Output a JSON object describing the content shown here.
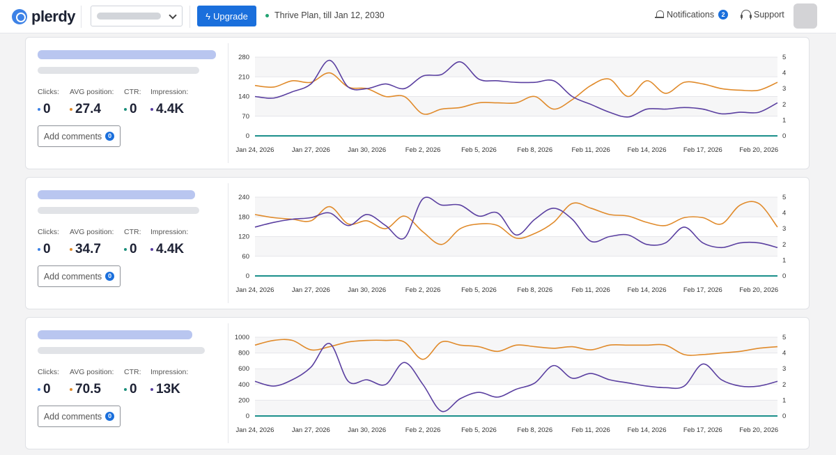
{
  "header": {
    "brand": "plerdy",
    "upgrade_label": "Upgrade",
    "plan_text": "Thrive Plan, till Jan 12, 2030",
    "notifications_label": "Notifications",
    "notifications_count": "2",
    "support_label": "Support"
  },
  "colors": {
    "accent": "#1a6fdc",
    "orange": "#e08a2a",
    "purple": "#5a3fa0",
    "teal": "#1a8f8a"
  },
  "cards": [
    {
      "metrics": [
        {
          "label": "Clicks:",
          "value": "0",
          "color": "#3d82e6"
        },
        {
          "label": "AVG position:",
          "value": "27.4",
          "color": "#e08a2a"
        },
        {
          "label": "CTR:",
          "value": "0",
          "color": "#1a8f7a"
        },
        {
          "label": "Impression:",
          "value": "4.4K",
          "color": "#5a3fa0"
        }
      ],
      "add_comments_label": "Add comments",
      "comments_count": "0",
      "chart": {
        "left_ticks": [
          "280",
          "210",
          "140",
          "70",
          "0"
        ],
        "right_ticks": [
          "5",
          "4",
          "3",
          "2",
          "1",
          "0"
        ],
        "x_labels": [
          "Jan 24, 2026",
          "Jan 27, 2026",
          "Jan 30, 2026",
          "Feb 2, 2026",
          "Feb 5, 2026",
          "Feb 8, 2026",
          "Feb 11, 2026",
          "Feb 14, 2026",
          "Feb 17, 2026",
          "Feb 20, 2026"
        ]
      }
    },
    {
      "metrics": [
        {
          "label": "Clicks:",
          "value": "0",
          "color": "#3d82e6"
        },
        {
          "label": "AVG position:",
          "value": "34.7",
          "color": "#e08a2a"
        },
        {
          "label": "CTR:",
          "value": "0",
          "color": "#1a8f7a"
        },
        {
          "label": "Impression:",
          "value": "4.4K",
          "color": "#5a3fa0"
        }
      ],
      "add_comments_label": "Add comments",
      "comments_count": "0",
      "chart": {
        "left_ticks": [
          "240",
          "180",
          "120",
          "60",
          "0"
        ],
        "right_ticks": [
          "5",
          "4",
          "3",
          "2",
          "1",
          "0"
        ],
        "x_labels": [
          "Jan 24, 2026",
          "Jan 27, 2026",
          "Jan 30, 2026",
          "Feb 2, 2026",
          "Feb 5, 2026",
          "Feb 8, 2026",
          "Feb 11, 2026",
          "Feb 14, 2026",
          "Feb 17, 2026",
          "Feb 20, 2026"
        ]
      }
    },
    {
      "metrics": [
        {
          "label": "Clicks:",
          "value": "0",
          "color": "#3d82e6"
        },
        {
          "label": "AVG position:",
          "value": "70.5",
          "color": "#e08a2a"
        },
        {
          "label": "CTR:",
          "value": "0",
          "color": "#1a8f7a"
        },
        {
          "label": "Impression:",
          "value": "13K",
          "color": "#5a3fa0"
        }
      ],
      "add_comments_label": "Add comments",
      "comments_count": "0",
      "chart": {
        "left_ticks": [
          "1000",
          "800",
          "600",
          "400",
          "200",
          "0"
        ],
        "right_ticks": [
          "5",
          "4",
          "3",
          "2",
          "1",
          "0"
        ],
        "x_labels": [
          "Jan 24, 2026",
          "Jan 27, 2026",
          "Jan 30, 2026",
          "Feb 2, 2026",
          "Feb 5, 2026",
          "Feb 8, 2026",
          "Feb 11, 2026",
          "Feb 14, 2026",
          "Feb 17, 2026",
          "Feb 20, 2026"
        ]
      }
    }
  ],
  "chart_data": [
    {
      "type": "line",
      "ylim": [
        0,
        280
      ],
      "y2lim": [
        0,
        5
      ],
      "x": [
        "Jan 24, 2026",
        "Jan 25, 2026",
        "Jan 26, 2026",
        "Jan 27, 2026",
        "Jan 28, 2026",
        "Jan 29, 2026",
        "Jan 30, 2026",
        "Jan 31, 2026",
        "Feb 1, 2026",
        "Feb 2, 2026",
        "Feb 3, 2026",
        "Feb 4, 2026",
        "Feb 5, 2026",
        "Feb 6, 2026",
        "Feb 7, 2026",
        "Feb 8, 2026",
        "Feb 9, 2026",
        "Feb 10, 2026",
        "Feb 11, 2026",
        "Feb 12, 2026",
        "Feb 13, 2026",
        "Feb 14, 2026",
        "Feb 15, 2026",
        "Feb 16, 2026",
        "Feb 17, 2026",
        "Feb 18, 2026",
        "Feb 19, 2026",
        "Feb 20, 2026",
        "Feb 21, 2026"
      ],
      "series": [
        {
          "axis": "right",
          "color": "#e08a2a",
          "values": [
            3.2,
            3.1,
            3.5,
            3.4,
            4.0,
            3.1,
            3.0,
            2.5,
            2.5,
            1.4,
            1.7,
            1.8,
            2.1,
            2.1,
            2.1,
            2.5,
            1.7,
            2.3,
            3.2,
            3.6,
            2.5,
            3.5,
            2.7,
            3.4,
            3.3,
            3.0,
            2.9,
            2.9,
            3.4
          ]
        },
        {
          "axis": "right",
          "color": "#5a3fa0",
          "values": [
            2.5,
            2.4,
            2.8,
            3.3,
            4.8,
            3.1,
            3.0,
            3.3,
            3.0,
            3.8,
            3.9,
            4.7,
            3.6,
            3.5,
            3.4,
            3.4,
            3.5,
            2.5,
            2.0,
            1.5,
            1.2,
            1.7,
            1.7,
            1.8,
            1.7,
            1.4,
            1.5,
            1.5,
            2.1
          ]
        },
        {
          "axis": "left",
          "color": "#1a8f8a",
          "values": [
            0,
            0,
            0,
            0,
            0,
            0,
            0,
            0,
            0,
            0,
            0,
            0,
            0,
            0,
            0,
            0,
            0,
            0,
            0,
            0,
            0,
            0,
            0,
            0,
            0,
            0,
            0,
            0,
            0
          ]
        }
      ]
    },
    {
      "type": "line",
      "ylim": [
        0,
        240
      ],
      "y2lim": [
        0,
        5
      ],
      "x": [
        "Jan 24, 2026",
        "Jan 25, 2026",
        "Jan 26, 2026",
        "Jan 27, 2026",
        "Jan 28, 2026",
        "Jan 29, 2026",
        "Jan 30, 2026",
        "Jan 31, 2026",
        "Feb 1, 2026",
        "Feb 2, 2026",
        "Feb 3, 2026",
        "Feb 4, 2026",
        "Feb 5, 2026",
        "Feb 6, 2026",
        "Feb 7, 2026",
        "Feb 8, 2026",
        "Feb 9, 2026",
        "Feb 10, 2026",
        "Feb 11, 2026",
        "Feb 12, 2026",
        "Feb 13, 2026",
        "Feb 14, 2026",
        "Feb 15, 2026",
        "Feb 16, 2026",
        "Feb 17, 2026",
        "Feb 18, 2026",
        "Feb 19, 2026",
        "Feb 20, 2026",
        "Feb 21, 2026"
      ],
      "series": [
        {
          "axis": "right",
          "color": "#e08a2a",
          "values": [
            3.9,
            3.7,
            3.6,
            3.5,
            4.4,
            3.3,
            3.5,
            3.0,
            3.8,
            2.8,
            2.0,
            3.0,
            3.3,
            3.2,
            2.4,
            2.7,
            3.4,
            4.6,
            4.3,
            3.9,
            3.8,
            3.4,
            3.2,
            3.7,
            3.7,
            3.3,
            4.5,
            4.6,
            3.1
          ]
        },
        {
          "axis": "right",
          "color": "#5a3fa0",
          "values": [
            3.1,
            3.4,
            3.6,
            3.7,
            4.0,
            3.2,
            3.9,
            3.2,
            2.4,
            4.9,
            4.5,
            4.5,
            3.8,
            4.0,
            2.6,
            3.6,
            4.3,
            3.6,
            2.2,
            2.5,
            2.6,
            2.0,
            2.1,
            3.1,
            2.1,
            1.8,
            2.1,
            2.1,
            1.8
          ]
        },
        {
          "axis": "left",
          "color": "#1a8f8a",
          "values": [
            0,
            0,
            0,
            0,
            0,
            0,
            0,
            0,
            0,
            0,
            0,
            0,
            0,
            0,
            0,
            0,
            0,
            0,
            0,
            0,
            0,
            0,
            0,
            0,
            0,
            0,
            0,
            0,
            0
          ]
        }
      ]
    },
    {
      "type": "line",
      "ylim": [
        0,
        1000
      ],
      "y2lim": [
        0,
        5
      ],
      "x": [
        "Jan 24, 2026",
        "Jan 25, 2026",
        "Jan 26, 2026",
        "Jan 27, 2026",
        "Jan 28, 2026",
        "Jan 29, 2026",
        "Jan 30, 2026",
        "Jan 31, 2026",
        "Feb 1, 2026",
        "Feb 2, 2026",
        "Feb 3, 2026",
        "Feb 4, 2026",
        "Feb 5, 2026",
        "Feb 6, 2026",
        "Feb 7, 2026",
        "Feb 8, 2026",
        "Feb 9, 2026",
        "Feb 10, 2026",
        "Feb 11, 2026",
        "Feb 12, 2026",
        "Feb 13, 2026",
        "Feb 14, 2026",
        "Feb 15, 2026",
        "Feb 16, 2026",
        "Feb 17, 2026",
        "Feb 18, 2026",
        "Feb 19, 2026",
        "Feb 20, 2026",
        "Feb 21, 2026"
      ],
      "series": [
        {
          "axis": "right",
          "color": "#e08a2a",
          "values": [
            4.5,
            4.8,
            4.8,
            4.2,
            4.4,
            4.7,
            4.8,
            4.8,
            4.7,
            3.6,
            4.7,
            4.5,
            4.4,
            4.1,
            4.5,
            4.4,
            4.3,
            4.4,
            4.2,
            4.5,
            4.5,
            4.5,
            4.5,
            3.9,
            3.9,
            4.0,
            4.1,
            4.3,
            4.4
          ]
        },
        {
          "axis": "right",
          "color": "#5a3fa0",
          "values": [
            2.2,
            1.9,
            2.3,
            3.1,
            4.6,
            2.2,
            2.3,
            2.0,
            3.4,
            2.0,
            0.3,
            1.1,
            1.5,
            1.2,
            1.7,
            2.1,
            3.2,
            2.4,
            2.7,
            2.3,
            2.1,
            1.9,
            1.8,
            1.9,
            3.3,
            2.3,
            1.9,
            1.9,
            2.2
          ]
        },
        {
          "axis": "left",
          "color": "#1a8f8a",
          "values": [
            0,
            0,
            0,
            0,
            0,
            0,
            0,
            0,
            0,
            0,
            0,
            0,
            0,
            0,
            0,
            0,
            0,
            0,
            0,
            0,
            0,
            0,
            0,
            0,
            0,
            0,
            0,
            0,
            0
          ]
        }
      ]
    }
  ]
}
